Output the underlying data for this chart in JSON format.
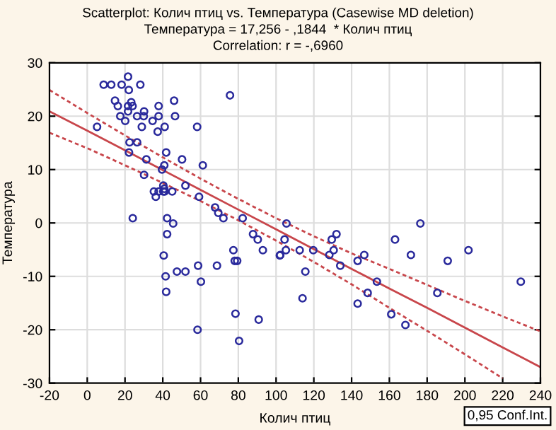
{
  "chart_data": {
    "type": "scatter",
    "title": "Scatterplot: Колич птиц vs. Температура (Casewise MD deletion)",
    "subtitle": "Температура = 17,256 - ,1844  * Колич птиц",
    "annotations": [
      "Correlation: r = -,6960",
      "0,95 Conf.Int."
    ],
    "xlabel": "Колич птиц",
    "ylabel": "Температура",
    "xlim": [
      -20,
      240
    ],
    "xticks": [
      -20,
      0,
      20,
      40,
      60,
      80,
      100,
      120,
      140,
      160,
      180,
      200,
      220,
      240
    ],
    "ylim": [
      -30,
      30
    ],
    "yticks": [
      -30,
      -20,
      -10,
      0,
      10,
      20,
      30
    ],
    "grid": true,
    "legend": false,
    "marker": "circle",
    "series": [
      {
        "color": "#2a2a9c",
        "x": [
          21.6,
          8.7,
          12.7,
          18.2,
          28.1,
          22,
          14.7,
          16.2,
          23.3,
          21.6,
          24,
          21.6,
          17.5,
          20.1,
          26.4,
          29.9,
          30.1,
          37.8,
          46,
          34.6,
          37.8,
          46.5,
          41,
          28.9,
          37.3,
          5.2,
          58.2,
          75.6,
          22.4,
          22.1,
          26.4,
          31.3,
          41.8,
          50.2,
          40.8,
          61.2,
          39.6,
          30.1,
          40.3,
          52,
          35.3,
          37.8,
          36.3,
          40.3,
          41,
          40.8,
          45,
          59.2,
          67.7,
          69.4,
          72.1,
          82.3,
          24.1,
          42.3,
          45.5,
          42.3,
          87.8,
          90.3,
          93,
          77.4,
          78.1,
          79.4,
          102,
          40.5,
          58.7,
          68.7,
          41.5,
          47.5,
          52,
          60.2,
          41.8,
          78.5,
          90.8,
          58.4,
          80.4,
          105.5,
          104.5,
          102.2,
          105.2,
          112.5,
          115.5,
          119.7,
          128.2,
          129.5,
          132,
          130.5,
          134,
          143.2,
          146.7,
          163,
          171.4,
          176.4,
          190.9,
          201.9,
          229.6,
          153.4,
          114,
          143.2,
          148.5,
          161,
          168.5,
          185.4
        ],
        "values": [
          27.4,
          25.9,
          25.9,
          25.9,
          25.9,
          24.9,
          22.9,
          21.9,
          22.6,
          21.9,
          21.9,
          20.9,
          20,
          19.1,
          20,
          20,
          20.9,
          21.9,
          22.9,
          19.1,
          20,
          20,
          18,
          18,
          17.1,
          18,
          18,
          23.9,
          15.1,
          13.2,
          15.1,
          11.9,
          13.2,
          11.9,
          10.8,
          10.8,
          10,
          9,
          7,
          7,
          5.9,
          5.9,
          4.9,
          5.9,
          5.9,
          6.4,
          5.9,
          4.9,
          2.9,
          1.9,
          0.9,
          0.9,
          0.9,
          0.9,
          -0.1,
          -2.1,
          -2.1,
          -3.1,
          -5.1,
          -5.1,
          -7.1,
          -7.1,
          -6.1,
          -6.1,
          -8,
          -8,
          -10,
          -9.1,
          -9.1,
          -11,
          -12.9,
          -17,
          -18.1,
          -20,
          -22.1,
          -0.1,
          -3.1,
          -6,
          -5.1,
          -5.1,
          -9.1,
          -5.1,
          -6,
          -3.1,
          -2.1,
          -5.1,
          -8,
          -7.1,
          -6,
          -3.1,
          -6,
          -0.1,
          -7.1,
          -5.1,
          -11,
          -11,
          -14.1,
          -15.1,
          -13.1,
          -17.1,
          -19.1,
          -13.1
        ]
      },
      {
        "type": "line",
        "color": "#c8464b",
        "x": [
          -20,
          0,
          20,
          40,
          60,
          80,
          100,
          120,
          140,
          160,
          180,
          200,
          220,
          240
        ],
        "marker": "none",
        "line_style": "solid",
        "values": [
          20.9,
          17.3,
          13.6,
          9.9,
          6.2,
          2.5,
          -1.2,
          -4.9,
          -8.6,
          -12.3,
          -15.9,
          -19.6,
          -23.3,
          -27.0
        ]
      },
      {
        "type": "line",
        "color": "#c8464b",
        "marker": "none",
        "line_style": "dashed",
        "x": [
          -20,
          0,
          20,
          40,
          60,
          80,
          100,
          120,
          140,
          160,
          180,
          200,
          220,
          240
        ],
        "values": [
          24.9,
          20.6,
          16.4,
          12.3,
          8.3,
          4.5,
          0.9,
          -2.5,
          -5.7,
          -8.6,
          -11.6,
          -14.6,
          -17.5,
          -20.3
        ]
      },
      {
        "type": "line",
        "color": "#c8464b",
        "marker": "none",
        "line_style": "dashed",
        "x": [
          -20,
          0,
          20,
          40,
          60,
          80,
          100,
          120,
          140,
          160,
          180,
          200,
          220
        ],
        "values": [
          16.9,
          14.0,
          10.8,
          7.5,
          4.1,
          0.5,
          -3.3,
          -7.3,
          -11.5,
          -15.9,
          -20.2,
          -24.6,
          -29.1
        ]
      }
    ]
  }
}
